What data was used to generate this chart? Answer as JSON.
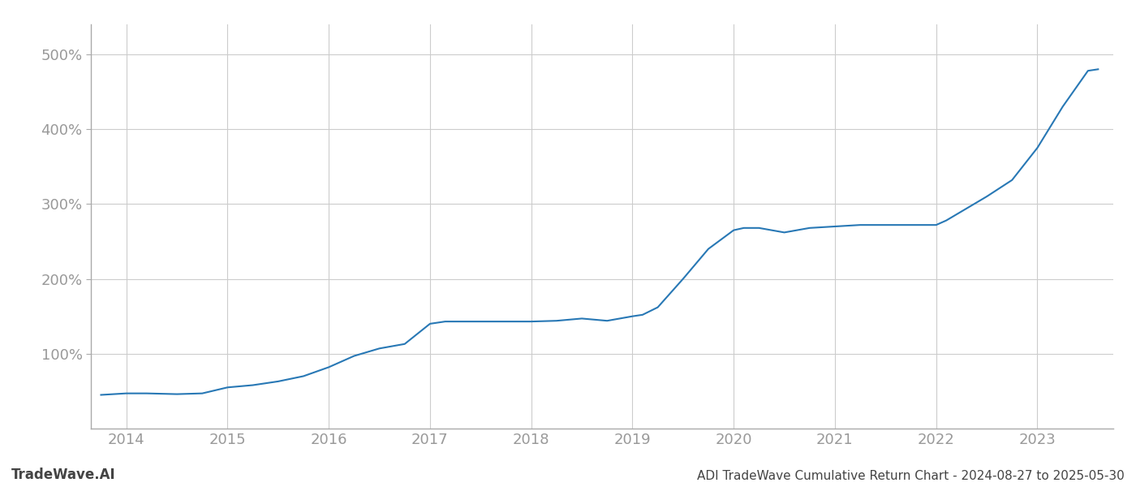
{
  "title": "ADI TradeWave Cumulative Return Chart - 2024-08-27 to 2025-05-30",
  "watermark": "TradeWave.AI",
  "line_color": "#2878b5",
  "background_color": "#ffffff",
  "grid_color": "#cccccc",
  "spine_color": "#aaaaaa",
  "x_tick_color": "#999999",
  "y_tick_color": "#999999",
  "xlim": [
    2013.65,
    2023.75
  ],
  "ylim": [
    0,
    540
  ],
  "yticks": [
    100,
    200,
    300,
    400,
    500
  ],
  "xticks": [
    2014,
    2015,
    2016,
    2017,
    2018,
    2019,
    2020,
    2021,
    2022,
    2023
  ],
  "x": [
    2013.75,
    2014.0,
    2014.2,
    2014.5,
    2014.75,
    2015.0,
    2015.25,
    2015.5,
    2015.75,
    2016.0,
    2016.25,
    2016.5,
    2016.75,
    2017.0,
    2017.15,
    2017.3,
    2017.5,
    2017.75,
    2018.0,
    2018.25,
    2018.5,
    2018.75,
    2019.0,
    2019.1,
    2019.25,
    2019.5,
    2019.75,
    2020.0,
    2020.1,
    2020.25,
    2020.5,
    2020.75,
    2021.0,
    2021.25,
    2021.5,
    2021.75,
    2022.0,
    2022.1,
    2022.25,
    2022.5,
    2022.75,
    2023.0,
    2023.25,
    2023.5,
    2023.6
  ],
  "y": [
    45,
    47,
    47,
    46,
    47,
    55,
    58,
    63,
    70,
    82,
    97,
    107,
    113,
    140,
    143,
    143,
    143,
    143,
    143,
    144,
    147,
    144,
    150,
    152,
    162,
    200,
    240,
    265,
    268,
    268,
    262,
    268,
    270,
    272,
    272,
    272,
    272,
    278,
    290,
    310,
    332,
    375,
    430,
    478,
    480
  ]
}
